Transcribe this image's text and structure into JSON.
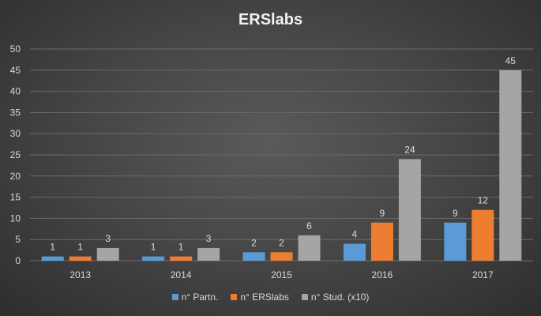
{
  "chart_data": {
    "type": "bar",
    "title": "ERSlabs",
    "categories": [
      "2013",
      "2014",
      "2015",
      "2016",
      "2017"
    ],
    "series": [
      {
        "name": "n° Partn.",
        "color": "#5b9bd5",
        "values": [
          1,
          1,
          2,
          4,
          9
        ]
      },
      {
        "name": "n° ERSlabs",
        "color": "#ed7d31",
        "values": [
          1,
          1,
          2,
          9,
          12
        ]
      },
      {
        "name": "n° Stud. (x10)",
        "color": "#a5a5a5",
        "values": [
          3,
          3,
          6,
          24,
          45
        ]
      }
    ],
    "ylim": [
      0,
      50
    ],
    "yticks": [
      0,
      5,
      10,
      15,
      20,
      25,
      30,
      35,
      40,
      45,
      50
    ],
    "grid": true,
    "legend_position": "bottom",
    "data_labels": true
  }
}
